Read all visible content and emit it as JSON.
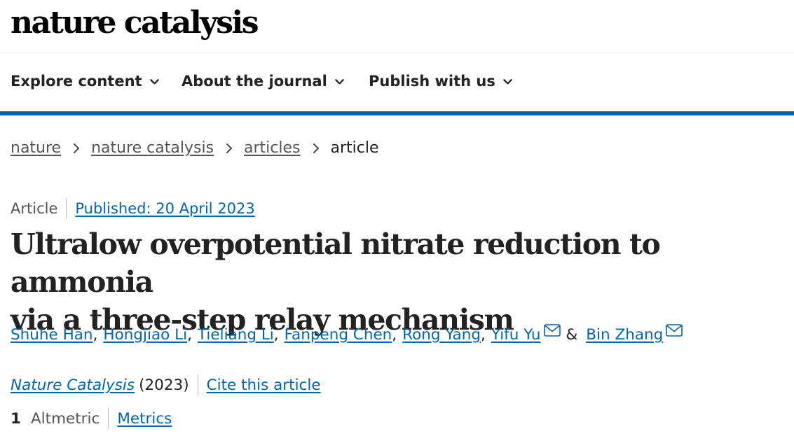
{
  "header": {
    "logo_text": "nature catalysis"
  },
  "nav": {
    "items": [
      {
        "label": "Explore content"
      },
      {
        "label": "About the journal"
      },
      {
        "label": "Publish with us"
      }
    ],
    "accent_color": "#0067a5"
  },
  "breadcrumb": {
    "items": [
      {
        "label": "nature"
      },
      {
        "label": "nature catalysis"
      },
      {
        "label": "articles"
      }
    ],
    "current": "article"
  },
  "article": {
    "type": "Article",
    "published": "Published: 20 April 2023",
    "title_line1": "Ultralow overpotential nitrate reduction to ammonia",
    "title_line2": "via a three-step relay mechanism",
    "authors": [
      "Shuhe Han",
      "Hongjiao Li",
      "Tieliang Li",
      "Fanpeng Chen",
      "Rong Yang",
      "Yifu Yu",
      "Bin Zhang"
    ],
    "author_separator": ",",
    "ampersand": "&",
    "journal_name": "Nature Catalysis",
    "year": "(2023)",
    "cite_label": "Cite this article",
    "altmetric_count": "1",
    "altmetric_label": "Altmetric",
    "metrics_label": "Metrics"
  },
  "icons": {
    "nav_chevron": "chevron-down-icon",
    "breadcrumb_separator": "chevron-right-icon",
    "author_contact": "mail-icon"
  },
  "colors": {
    "link": "#0067a5",
    "text": "#222222",
    "muted": "#555555"
  }
}
